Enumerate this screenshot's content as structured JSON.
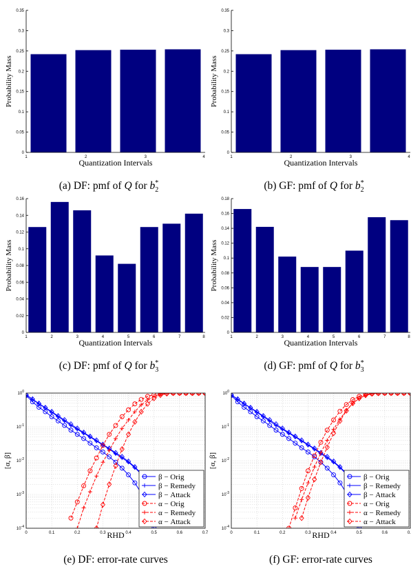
{
  "chart_data": [
    {
      "id": "a",
      "type": "bar",
      "caption": "(a) DF: pmf of Q for b2*",
      "xlabel": "Quantization Intervals",
      "ylabel": "Probability Mass",
      "categories": [
        "1",
        "2",
        "3",
        "4"
      ],
      "values": [
        0.242,
        0.252,
        0.253,
        0.254
      ],
      "ylim": [
        0,
        0.35
      ],
      "yticks": [
        "0",
        "0.05",
        "0.1",
        "0.15",
        "0.2",
        "0.25",
        "0.3",
        "0.35"
      ],
      "bar_color": "#000080"
    },
    {
      "id": "b",
      "type": "bar",
      "caption": "(b) GF: pmf of Q for b2*",
      "xlabel": "Quantization Intervals",
      "ylabel": "Probability Mass",
      "categories": [
        "1",
        "2",
        "3",
        "4"
      ],
      "values": [
        0.242,
        0.252,
        0.253,
        0.254
      ],
      "ylim": [
        0,
        0.35
      ],
      "yticks": [
        "0",
        "0.05",
        "0.1",
        "0.15",
        "0.2",
        "0.25",
        "0.3",
        "0.35"
      ],
      "bar_color": "#000080"
    },
    {
      "id": "c",
      "type": "bar",
      "caption": "(c) DF: pmf of Q for b3*",
      "xlabel": "Quantization Intervals",
      "ylabel": "Probability Mass",
      "categories": [
        "1",
        "2",
        "3",
        "4",
        "5",
        "6",
        "7",
        "8"
      ],
      "values": [
        0.126,
        0.156,
        0.146,
        0.092,
        0.082,
        0.126,
        0.13,
        0.142
      ],
      "ylim": [
        0,
        0.16
      ],
      "yticks": [
        "0",
        "0.02",
        "0.04",
        "0.06",
        "0.08",
        "0.1",
        "0.12",
        "0.14",
        "0.16"
      ],
      "bar_color": "#000080"
    },
    {
      "id": "d",
      "type": "bar",
      "caption": "(d) GF: pmf of Q for b3*",
      "xlabel": "Quantization Intervals",
      "ylabel": "Probability Mass",
      "categories": [
        "1",
        "2",
        "3",
        "4",
        "5",
        "6",
        "7",
        "8"
      ],
      "values": [
        0.166,
        0.142,
        0.102,
        0.088,
        0.088,
        0.11,
        0.155,
        0.151
      ],
      "ylim": [
        0,
        0.18
      ],
      "yticks": [
        "0",
        "0.02",
        "0.04",
        "0.06",
        "0.08",
        "0.1",
        "0.12",
        "0.14",
        "0.16",
        "0.18"
      ],
      "bar_color": "#000080"
    },
    {
      "id": "e",
      "type": "line",
      "caption": "(e) DF: error-rate curves",
      "xlabel": "RHD",
      "ylabel": "[α, β]",
      "ylog": true,
      "ylim_exp": [
        -4,
        0
      ],
      "xlim": [
        0,
        0.7
      ],
      "xticks": [
        "0",
        "0.1",
        "0.2",
        "0.3",
        "0.4",
        "0.5",
        "0.6",
        "0.7"
      ],
      "grid": true,
      "legend_position": "lower-right",
      "series": [
        {
          "name": "β − Orig",
          "color": "#0000ff",
          "marker": "circle",
          "dash": "solid",
          "x": [
            0,
            0.025,
            0.05,
            0.075,
            0.1,
            0.125,
            0.15,
            0.175,
            0.2,
            0.225,
            0.25,
            0.275,
            0.3,
            0.325,
            0.35,
            0.375,
            0.4,
            0.425,
            0.45,
            0.475,
            0.5
          ],
          "y": [
            0.85,
            0.55,
            0.38,
            0.28,
            0.2,
            0.15,
            0.11,
            0.08,
            0.06,
            0.045,
            0.033,
            0.024,
            0.018,
            0.013,
            0.009,
            0.006,
            0.0038,
            0.0022,
            0.0011,
            0.0004,
            0.0001
          ]
        },
        {
          "name": "β − Remedy",
          "color": "#0000ff",
          "marker": "plus",
          "dash": "solid",
          "x": [
            0,
            0.025,
            0.05,
            0.075,
            0.1,
            0.125,
            0.15,
            0.175,
            0.2,
            0.225,
            0.25,
            0.275,
            0.3,
            0.325,
            0.35,
            0.375,
            0.4,
            0.425,
            0.45,
            0.475,
            0.5
          ],
          "y": [
            0.88,
            0.65,
            0.48,
            0.36,
            0.27,
            0.2,
            0.15,
            0.11,
            0.085,
            0.065,
            0.05,
            0.038,
            0.029,
            0.022,
            0.016,
            0.012,
            0.009,
            0.0062,
            0.004,
            0.002,
            0.0006
          ]
        },
        {
          "name": "β − Attack",
          "color": "#0000ff",
          "marker": "diamond",
          "dash": "solid",
          "x": [
            0,
            0.025,
            0.05,
            0.075,
            0.1,
            0.125,
            0.15,
            0.175,
            0.2,
            0.225,
            0.25,
            0.275,
            0.3,
            0.325,
            0.35,
            0.375,
            0.4,
            0.425,
            0.45,
            0.475,
            0.5
          ],
          "y": [
            0.89,
            0.66,
            0.49,
            0.37,
            0.28,
            0.21,
            0.16,
            0.12,
            0.09,
            0.068,
            0.052,
            0.04,
            0.03,
            0.023,
            0.017,
            0.013,
            0.0095,
            0.0065,
            0.0042,
            0.0021,
            0.0007
          ]
        },
        {
          "name": "α − Orig",
          "color": "#ff0000",
          "marker": "circle",
          "dash": "dashed",
          "x": [
            0.175,
            0.2,
            0.225,
            0.25,
            0.275,
            0.3,
            0.325,
            0.35,
            0.375,
            0.4,
            0.425,
            0.45,
            0.475,
            0.5,
            0.525,
            0.55,
            0.575,
            0.6,
            0.625,
            0.65,
            0.675,
            0.7
          ],
          "y": [
            0.0002,
            0.0006,
            0.0018,
            0.005,
            0.012,
            0.028,
            0.06,
            0.11,
            0.2,
            0.32,
            0.48,
            0.65,
            0.8,
            0.9,
            0.96,
            0.99,
            1,
            1,
            1,
            1,
            1,
            1
          ]
        },
        {
          "name": "α − Remedy",
          "color": "#ff0000",
          "marker": "plus",
          "dash": "dashed",
          "x": [
            0.2,
            0.225,
            0.25,
            0.275,
            0.3,
            0.325,
            0.35,
            0.375,
            0.4,
            0.425,
            0.45,
            0.475,
            0.5,
            0.525,
            0.55,
            0.575,
            0.6,
            0.625,
            0.65,
            0.675,
            0.7
          ],
          "y": [
            0.0001,
            0.0004,
            0.0012,
            0.0035,
            0.009,
            0.02,
            0.045,
            0.09,
            0.16,
            0.28,
            0.45,
            0.63,
            0.8,
            0.92,
            0.98,
            1,
            1,
            1,
            1,
            1,
            1
          ]
        },
        {
          "name": "α − Attack",
          "color": "#ff0000",
          "marker": "diamond",
          "dash": "dashed",
          "x": [
            0.275,
            0.3,
            0.325,
            0.35,
            0.375,
            0.4,
            0.425,
            0.45,
            0.475,
            0.5,
            0.525,
            0.55,
            0.575,
            0.6,
            0.625,
            0.65,
            0.675,
            0.7
          ],
          "y": [
            0.0001,
            0.0005,
            0.002,
            0.007,
            0.022,
            0.06,
            0.14,
            0.28,
            0.48,
            0.7,
            0.87,
            0.96,
            1,
            1,
            1,
            1,
            1,
            1
          ]
        }
      ]
    },
    {
      "id": "f",
      "type": "line",
      "caption": "(f) GF: error-rate curves",
      "xlabel": "RHD",
      "ylabel": "[α, β]",
      "ylog": true,
      "ylim_exp": [
        -4,
        0
      ],
      "xlim": [
        0,
        0.7
      ],
      "xticks": [
        "0",
        "0.1",
        "0.2",
        "0.3",
        "0.4",
        "0.5",
        "0.6",
        "0.7"
      ],
      "grid": true,
      "legend_position": "lower-right",
      "series": [
        {
          "name": "β − Orig",
          "color": "#0000ff",
          "marker": "circle",
          "dash": "solid",
          "x": [
            0,
            0.025,
            0.05,
            0.075,
            0.1,
            0.125,
            0.15,
            0.175,
            0.2,
            0.225,
            0.25,
            0.275,
            0.3,
            0.325,
            0.35,
            0.375,
            0.4,
            0.425,
            0.45,
            0.475,
            0.5
          ],
          "y": [
            0.85,
            0.55,
            0.38,
            0.28,
            0.2,
            0.15,
            0.11,
            0.08,
            0.06,
            0.045,
            0.033,
            0.024,
            0.018,
            0.013,
            0.009,
            0.006,
            0.0038,
            0.0022,
            0.0011,
            0.0004,
            0.0001
          ]
        },
        {
          "name": "β − Remedy",
          "color": "#0000ff",
          "marker": "plus",
          "dash": "solid",
          "x": [
            0,
            0.025,
            0.05,
            0.075,
            0.1,
            0.125,
            0.15,
            0.175,
            0.2,
            0.225,
            0.25,
            0.275,
            0.3,
            0.325,
            0.35,
            0.375,
            0.4,
            0.425,
            0.45,
            0.475,
            0.5
          ],
          "y": [
            0.88,
            0.65,
            0.48,
            0.36,
            0.27,
            0.2,
            0.15,
            0.11,
            0.085,
            0.065,
            0.05,
            0.038,
            0.029,
            0.022,
            0.016,
            0.012,
            0.009,
            0.0062,
            0.004,
            0.002,
            0.0006
          ]
        },
        {
          "name": "β − Attack",
          "color": "#0000ff",
          "marker": "diamond",
          "dash": "solid",
          "x": [
            0,
            0.025,
            0.05,
            0.075,
            0.1,
            0.125,
            0.15,
            0.175,
            0.2,
            0.225,
            0.25,
            0.275,
            0.3,
            0.325,
            0.35,
            0.375,
            0.4,
            0.425,
            0.45,
            0.475,
            0.5
          ],
          "y": [
            0.89,
            0.66,
            0.49,
            0.37,
            0.28,
            0.21,
            0.16,
            0.12,
            0.09,
            0.068,
            0.052,
            0.04,
            0.03,
            0.023,
            0.017,
            0.013,
            0.0095,
            0.0065,
            0.0042,
            0.0021,
            0.0007
          ]
        },
        {
          "name": "α − Orig",
          "color": "#ff0000",
          "marker": "circle",
          "dash": "dashed",
          "x": [
            0.225,
            0.25,
            0.275,
            0.3,
            0.325,
            0.35,
            0.375,
            0.4,
            0.425,
            0.45,
            0.475,
            0.5,
            0.525,
            0.55,
            0.575,
            0.6,
            0.625,
            0.65,
            0.675,
            0.7
          ],
          "y": [
            0.0001,
            0.0004,
            0.0015,
            0.005,
            0.014,
            0.035,
            0.08,
            0.16,
            0.29,
            0.46,
            0.64,
            0.8,
            0.91,
            0.97,
            0.99,
            1,
            1,
            1,
            1,
            1
          ]
        },
        {
          "name": "α − Remedy",
          "color": "#ff0000",
          "marker": "plus",
          "dash": "dashed",
          "x": [
            0.25,
            0.275,
            0.3,
            0.325,
            0.35,
            0.375,
            0.4,
            0.425,
            0.45,
            0.475,
            0.5,
            0.525,
            0.55,
            0.575,
            0.6,
            0.625,
            0.65,
            0.675,
            0.7
          ],
          "y": [
            0.0002,
            0.0007,
            0.0022,
            0.0065,
            0.017,
            0.04,
            0.085,
            0.17,
            0.31,
            0.5,
            0.69,
            0.85,
            0.95,
            0.99,
            1,
            1,
            1,
            1,
            1
          ]
        },
        {
          "name": "α − Attack",
          "color": "#ff0000",
          "marker": "diamond",
          "dash": "dashed",
          "x": [
            0.275,
            0.3,
            0.325,
            0.35,
            0.375,
            0.4,
            0.425,
            0.45,
            0.475,
            0.5,
            0.525,
            0.55,
            0.575,
            0.6,
            0.625,
            0.65,
            0.675,
            0.7
          ],
          "y": [
            0.0002,
            0.0008,
            0.0028,
            0.009,
            0.025,
            0.065,
            0.15,
            0.3,
            0.5,
            0.7,
            0.86,
            0.95,
            0.99,
            1,
            1,
            1,
            1,
            1
          ]
        }
      ]
    }
  ]
}
